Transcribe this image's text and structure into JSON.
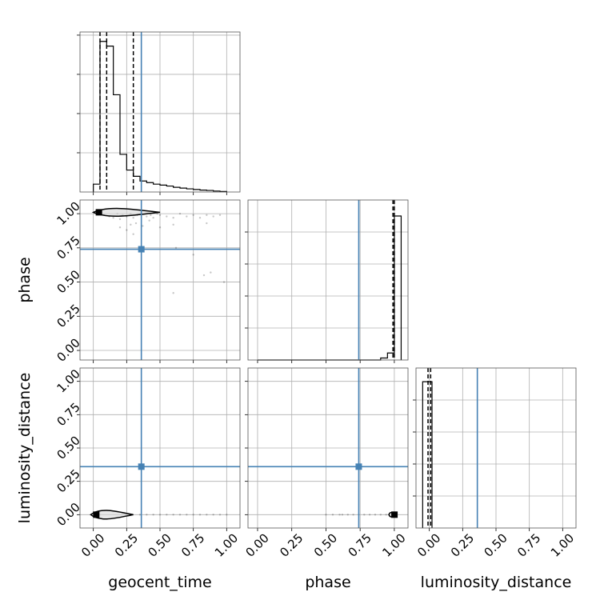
{
  "chart_data": {
    "type": "corner",
    "parameters": [
      "geocent_time",
      "phase",
      "luminosity_distance"
    ],
    "truth": {
      "geocent_time": 0.36,
      "phase": 0.74,
      "luminosity_distance": 0.36
    },
    "truth_color": "#4682b4",
    "tick_labels": [
      "0.00",
      "0.25",
      "0.50",
      "0.75",
      "1.00"
    ],
    "grid": true,
    "ranges": {
      "geocent_time": [
        -0.1,
        1.1
      ],
      "phase": [
        -0.07,
        1.1
      ],
      "luminosity_distance": [
        -0.1,
        1.1
      ]
    },
    "histograms": {
      "geocent_time": {
        "bin_edges": [
          0.0,
          0.05,
          0.1,
          0.15,
          0.2,
          0.25,
          0.3,
          0.35,
          0.4,
          0.45,
          0.5,
          0.55,
          0.6,
          0.65,
          0.7,
          0.75,
          0.8,
          0.85,
          0.9,
          0.95,
          1.0
        ],
        "counts": [
          0.5,
          9.6,
          9.3,
          6.2,
          2.4,
          1.4,
          1.0,
          0.7,
          0.6,
          0.5,
          0.44,
          0.38,
          0.3,
          0.25,
          0.2,
          0.16,
          0.12,
          0.1,
          0.06,
          0.03
        ],
        "ymax": 10.2,
        "quantiles": [
          0.05,
          0.1,
          0.3
        ]
      },
      "phase": {
        "bin_edges": [
          0.0,
          0.05,
          0.1,
          0.15,
          0.2,
          0.25,
          0.3,
          0.35,
          0.4,
          0.45,
          0.5,
          0.55,
          0.6,
          0.65,
          0.7,
          0.75,
          0.8,
          0.85,
          0.9,
          0.95,
          1.0,
          1.05
        ],
        "counts": [
          0,
          0,
          0,
          0,
          0,
          0,
          0,
          0,
          0,
          0,
          0,
          0,
          0,
          0,
          0,
          0,
          0,
          0,
          0.1,
          0.35,
          7.2,
          0
        ],
        "ymax": 8.0,
        "quantiles": [
          0.99,
          1.0
        ]
      },
      "luminosity_distance": {
        "bin_edges": [
          -0.05,
          0.0,
          0.02
        ],
        "counts": [
          6.4,
          6.4
        ],
        "ymax": 7.0,
        "quantiles": [
          -0.01,
          0.01
        ]
      }
    },
    "scatter": {
      "geocent_time_vs_phase": {
        "x": [
          0.05,
          0.08,
          0.12,
          0.15,
          0.18,
          0.2,
          0.22,
          0.25,
          0.28,
          0.3,
          0.33,
          0.36,
          0.4,
          0.43,
          0.45,
          0.48,
          0.5,
          0.55,
          0.6,
          0.65,
          0.7,
          0.75,
          0.8,
          0.85,
          0.9,
          0.95,
          0.2,
          0.25,
          0.28,
          0.32,
          0.37,
          0.42,
          0.5,
          0.6,
          0.62,
          0.75,
          0.83,
          0.88,
          0.98,
          0.3,
          0.85,
          0.6
        ],
        "y": [
          1.0,
          0.99,
          0.98,
          0.97,
          1.0,
          0.96,
          0.99,
          0.98,
          1.0,
          0.97,
          0.99,
          1.0,
          0.98,
          0.99,
          0.97,
          1.0,
          0.99,
          0.98,
          0.97,
          1.0,
          0.98,
          0.99,
          0.97,
          0.99,
          0.98,
          0.99,
          0.9,
          0.88,
          0.92,
          0.93,
          0.91,
          0.95,
          0.9,
          0.92,
          0.75,
          0.7,
          0.55,
          0.57,
          0.5,
          0.85,
          0.93,
          0.42
        ],
        "contour": {
          "x0": 0.0,
          "x1": 0.5,
          "y": 1.01,
          "half_height": 0.035
        }
      },
      "geocent_time_vs_luminosity_distance": {
        "x": [
          0.35,
          0.4,
          0.45,
          0.5,
          0.55,
          0.6,
          0.65,
          0.7,
          0.75,
          0.8,
          0.85,
          0.9,
          0.95,
          1.0
        ],
        "y": [
          0.0,
          0.0,
          0.0,
          0.0,
          0.0,
          0.0,
          0.0,
          0.0,
          0.0,
          0.0,
          0.0,
          0.0,
          0.0,
          0.0
        ],
        "contour": {
          "x0": -0.02,
          "x1": 0.3,
          "y": 0.0,
          "half_height": 0.04
        }
      },
      "phase_vs_luminosity_distance": {
        "x": [
          0.5,
          0.55,
          0.6,
          0.62,
          0.66,
          0.7,
          0.74,
          0.78,
          0.82,
          0.86,
          0.9,
          0.94
        ],
        "y": [
          0.0,
          0.0,
          0.0,
          0.0,
          0.0,
          0.0,
          0.0,
          0.0,
          0.0,
          0.0,
          0.0,
          0.0
        ],
        "contour": {
          "x0": 0.96,
          "x1": 1.01,
          "y": 0.0,
          "half_height": 0.02
        }
      }
    }
  }
}
